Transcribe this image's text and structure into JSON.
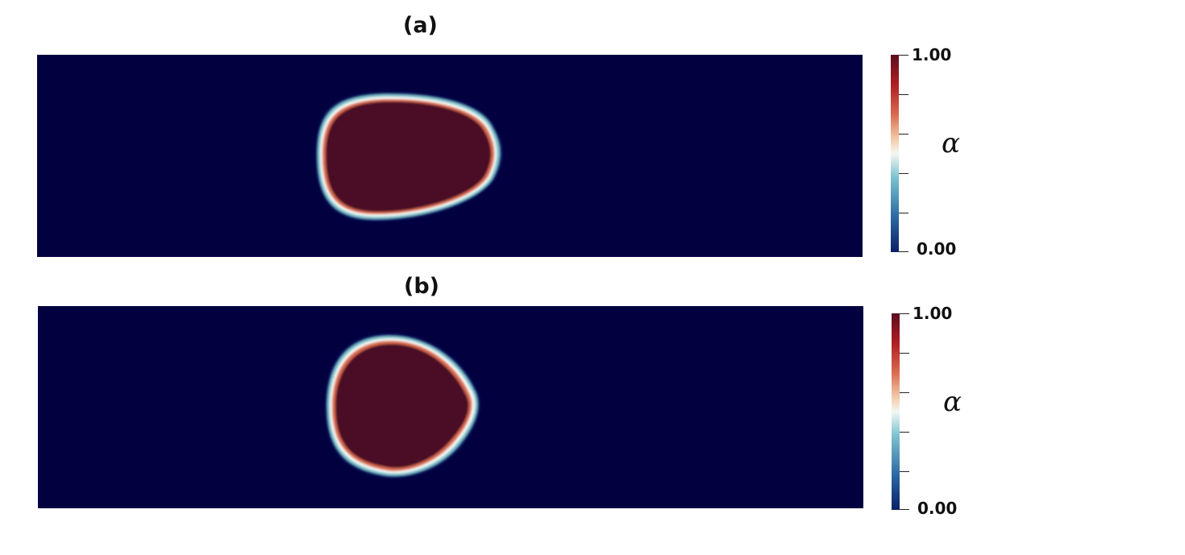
{
  "panels": [
    {
      "label": "(a)",
      "colorbar": {
        "min_label": "0.00",
        "max_label": "1.00",
        "variable": "α"
      }
    },
    {
      "label": "(b)",
      "colorbar": {
        "min_label": "0.00",
        "max_label": "1.00",
        "variable": "α"
      }
    }
  ],
  "colors": {
    "background_field": "#03003f",
    "droplet_core": "#4b1025",
    "colormap": [
      "#0b1f66",
      "#2b6aa3",
      "#7ec3cf",
      "#f5f7f2",
      "#f2c6a4",
      "#d9694f",
      "#b01d22",
      "#5c0d1f"
    ]
  }
}
